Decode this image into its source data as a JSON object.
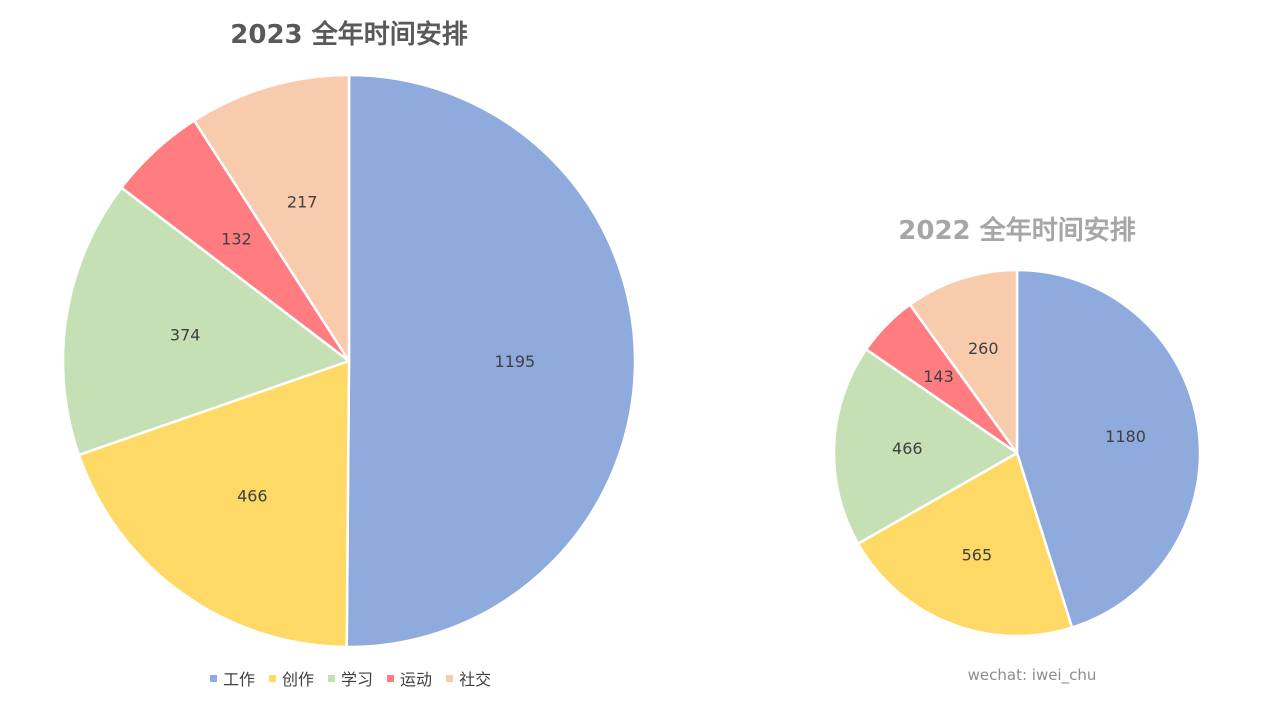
{
  "chart_data": [
    {
      "type": "pie",
      "title": "2023 全年时间安排",
      "categories": [
        "工作",
        "创作",
        "学习",
        "运动",
        "社交"
      ],
      "values": [
        1195,
        466,
        374,
        132,
        217
      ],
      "start_angle": "12 o'clock, clockwise"
    },
    {
      "type": "pie",
      "title": "2022 全年时间安排",
      "categories": [
        "工作",
        "创作",
        "学习",
        "运动",
        "社交"
      ],
      "values": [
        1180,
        565,
        466,
        143,
        260
      ],
      "start_angle": "12 o'clock, clockwise"
    }
  ],
  "legend": {
    "placement": "bottom",
    "items": [
      {
        "label": "工作",
        "color": "#8faadc"
      },
      {
        "label": "创作",
        "color": "#ffd966"
      },
      {
        "label": "学习",
        "color": "#c5e0b4"
      },
      {
        "label": "运动",
        "color": "#ff7c80"
      },
      {
        "label": "社交",
        "color": "#f8cbad"
      }
    ]
  },
  "watermark": "wechat: iwei_chu"
}
